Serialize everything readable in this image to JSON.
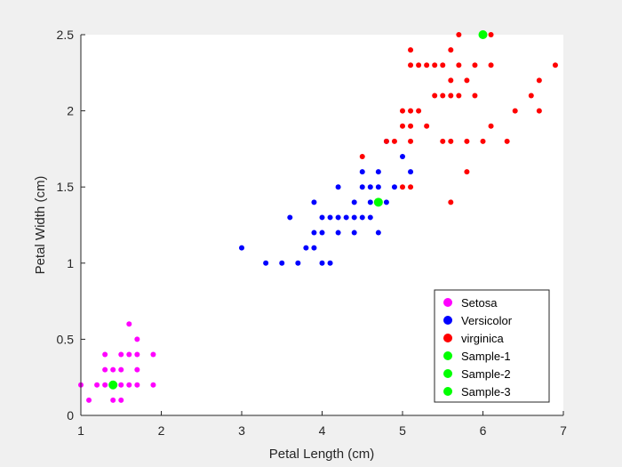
{
  "chart_data": {
    "type": "scatter",
    "title": "",
    "xlabel": "Petal Length (cm)",
    "ylabel": "Petal Width (cm)",
    "xlim": [
      1,
      7
    ],
    "ylim": [
      0,
      2.5
    ],
    "xticks": [
      1,
      2,
      3,
      4,
      5,
      6,
      7
    ],
    "yticks": [
      0,
      0.5,
      1,
      1.5,
      2,
      2.5
    ],
    "xtick_labels": [
      "1",
      "2",
      "3",
      "4",
      "5",
      "6",
      "7"
    ],
    "ytick_labels": [
      "0",
      "0.5",
      "1",
      "1.5",
      "2",
      "2.5"
    ],
    "grid": false,
    "legend_position": "bottom-right",
    "series": [
      {
        "name": "Setosa",
        "color": "#ff00ff",
        "marker": "small",
        "points": [
          [
            1.0,
            0.2
          ],
          [
            1.1,
            0.1
          ],
          [
            1.2,
            0.2
          ],
          [
            1.3,
            0.2
          ],
          [
            1.3,
            0.3
          ],
          [
            1.3,
            0.4
          ],
          [
            1.4,
            0.1
          ],
          [
            1.4,
            0.2
          ],
          [
            1.4,
            0.3
          ],
          [
            1.5,
            0.1
          ],
          [
            1.5,
            0.2
          ],
          [
            1.5,
            0.3
          ],
          [
            1.5,
            0.4
          ],
          [
            1.6,
            0.2
          ],
          [
            1.6,
            0.4
          ],
          [
            1.6,
            0.6
          ],
          [
            1.7,
            0.2
          ],
          [
            1.7,
            0.3
          ],
          [
            1.7,
            0.4
          ],
          [
            1.7,
            0.5
          ],
          [
            1.9,
            0.2
          ],
          [
            1.9,
            0.4
          ]
        ]
      },
      {
        "name": "Versicolor",
        "color": "#0000ff",
        "marker": "small",
        "points": [
          [
            3.0,
            1.1
          ],
          [
            3.3,
            1.0
          ],
          [
            3.5,
            1.0
          ],
          [
            3.6,
            1.3
          ],
          [
            3.7,
            1.0
          ],
          [
            3.8,
            1.1
          ],
          [
            3.9,
            1.1
          ],
          [
            3.9,
            1.2
          ],
          [
            3.9,
            1.4
          ],
          [
            4.0,
            1.0
          ],
          [
            4.0,
            1.2
          ],
          [
            4.0,
            1.3
          ],
          [
            4.1,
            1.0
          ],
          [
            4.1,
            1.3
          ],
          [
            4.2,
            1.2
          ],
          [
            4.2,
            1.3
          ],
          [
            4.2,
            1.5
          ],
          [
            4.3,
            1.3
          ],
          [
            4.4,
            1.2
          ],
          [
            4.4,
            1.3
          ],
          [
            4.4,
            1.4
          ],
          [
            4.5,
            1.3
          ],
          [
            4.5,
            1.5
          ],
          [
            4.5,
            1.6
          ],
          [
            4.6,
            1.3
          ],
          [
            4.6,
            1.4
          ],
          [
            4.6,
            1.5
          ],
          [
            4.7,
            1.2
          ],
          [
            4.7,
            1.5
          ],
          [
            4.7,
            1.6
          ],
          [
            4.8,
            1.4
          ],
          [
            4.8,
            1.8
          ],
          [
            4.9,
            1.5
          ],
          [
            5.0,
            1.7
          ],
          [
            5.1,
            1.6
          ]
        ]
      },
      {
        "name": "virginica",
        "color": "#ff0000",
        "marker": "small",
        "points": [
          [
            4.5,
            1.7
          ],
          [
            4.8,
            1.8
          ],
          [
            4.9,
            1.8
          ],
          [
            5.0,
            1.5
          ],
          [
            5.0,
            1.9
          ],
          [
            5.0,
            2.0
          ],
          [
            5.1,
            1.5
          ],
          [
            5.1,
            1.8
          ],
          [
            5.1,
            1.9
          ],
          [
            5.1,
            2.0
          ],
          [
            5.1,
            2.3
          ],
          [
            5.1,
            2.4
          ],
          [
            5.2,
            2.0
          ],
          [
            5.2,
            2.3
          ],
          [
            5.3,
            1.9
          ],
          [
            5.3,
            2.3
          ],
          [
            5.4,
            2.1
          ],
          [
            5.4,
            2.3
          ],
          [
            5.5,
            1.8
          ],
          [
            5.5,
            2.1
          ],
          [
            5.5,
            2.3
          ],
          [
            5.6,
            1.4
          ],
          [
            5.6,
            1.8
          ],
          [
            5.6,
            2.1
          ],
          [
            5.6,
            2.2
          ],
          [
            5.6,
            2.4
          ],
          [
            5.7,
            2.1
          ],
          [
            5.7,
            2.3
          ],
          [
            5.7,
            2.5
          ],
          [
            5.8,
            1.6
          ],
          [
            5.8,
            1.8
          ],
          [
            5.8,
            2.2
          ],
          [
            5.9,
            2.1
          ],
          [
            5.9,
            2.3
          ],
          [
            6.0,
            1.8
          ],
          [
            6.0,
            2.5
          ],
          [
            6.1,
            1.9
          ],
          [
            6.1,
            2.3
          ],
          [
            6.1,
            2.5
          ],
          [
            6.3,
            1.8
          ],
          [
            6.4,
            2.0
          ],
          [
            6.6,
            2.1
          ],
          [
            6.7,
            2.0
          ],
          [
            6.7,
            2.2
          ],
          [
            6.9,
            2.3
          ]
        ]
      },
      {
        "name": "Sample-1",
        "color": "#00ff00",
        "marker": "large",
        "points": [
          [
            1.4,
            0.2
          ]
        ]
      },
      {
        "name": "Sample-2",
        "color": "#00ff00",
        "marker": "large",
        "points": [
          [
            4.7,
            1.4
          ]
        ]
      },
      {
        "name": "Sample-3",
        "color": "#00ff00",
        "marker": "large",
        "points": [
          [
            6.0,
            2.5
          ]
        ]
      }
    ]
  }
}
